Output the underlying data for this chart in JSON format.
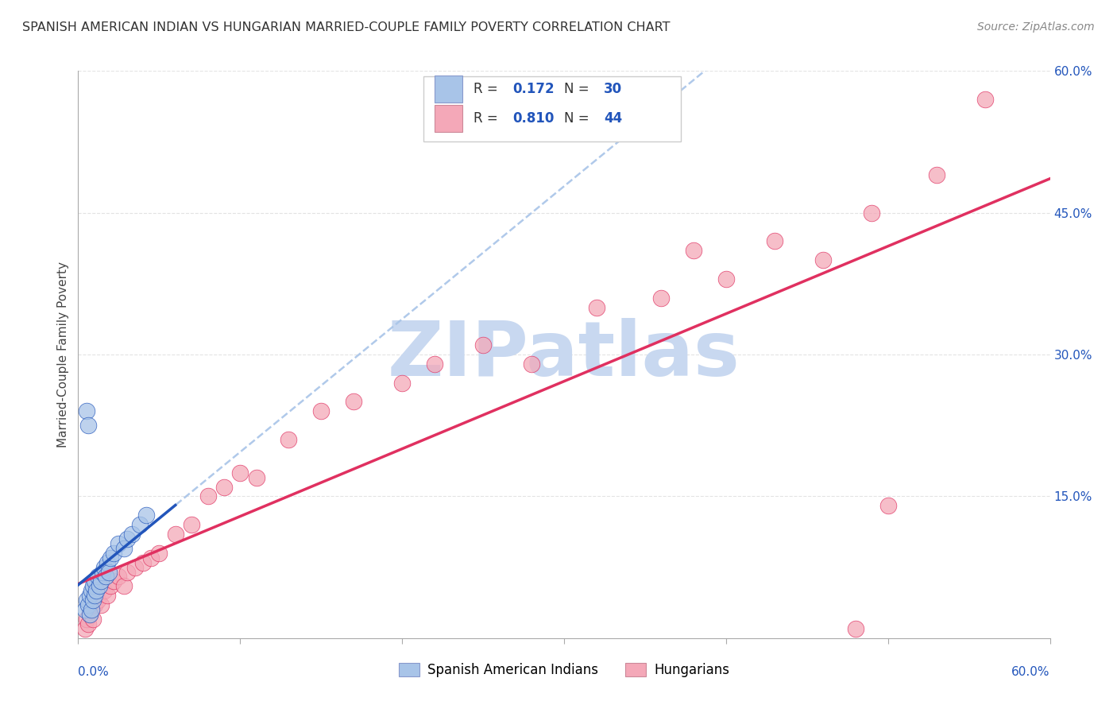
{
  "title": "SPANISH AMERICAN INDIAN VS HUNGARIAN MARRIED-COUPLE FAMILY POVERTY CORRELATION CHART",
  "source": "Source: ZipAtlas.com",
  "ylabel": "Married-Couple Family Poverty",
  "legend_label1": "Spanish American Indians",
  "legend_label2": "Hungarians",
  "r1": "0.172",
  "n1": "30",
  "r2": "0.810",
  "n2": "44",
  "xlim": [
    0.0,
    0.6
  ],
  "ylim": [
    0.0,
    0.6
  ],
  "yticks": [
    0.0,
    0.15,
    0.3,
    0.45,
    0.6
  ],
  "color_blue": "#A8C4E8",
  "color_pink": "#F4A8B8",
  "line_blue": "#2255BB",
  "line_pink": "#E03060",
  "dash_color": "#A8C4E8",
  "background": "#ffffff",
  "watermark": "ZIPatlas",
  "watermark_color": "#C8D8F0",
  "blue_points_x": [
    0.004,
    0.005,
    0.006,
    0.007,
    0.007,
    0.008,
    0.008,
    0.009,
    0.009,
    0.01,
    0.01,
    0.011,
    0.012,
    0.013,
    0.014,
    0.015,
    0.016,
    0.017,
    0.018,
    0.019,
    0.02,
    0.022,
    0.025,
    0.028,
    0.03,
    0.033,
    0.038,
    0.042,
    0.005,
    0.006
  ],
  "blue_points_y": [
    0.03,
    0.04,
    0.035,
    0.025,
    0.045,
    0.05,
    0.03,
    0.04,
    0.055,
    0.045,
    0.06,
    0.05,
    0.065,
    0.055,
    0.06,
    0.07,
    0.075,
    0.065,
    0.08,
    0.07,
    0.085,
    0.09,
    0.1,
    0.095,
    0.105,
    0.11,
    0.12,
    0.13,
    0.24,
    0.225
  ],
  "pink_points_x": [
    0.004,
    0.005,
    0.006,
    0.007,
    0.008,
    0.009,
    0.01,
    0.012,
    0.014,
    0.016,
    0.018,
    0.02,
    0.022,
    0.025,
    0.028,
    0.03,
    0.035,
    0.04,
    0.045,
    0.05,
    0.06,
    0.07,
    0.08,
    0.09,
    0.1,
    0.11,
    0.13,
    0.15,
    0.17,
    0.2,
    0.22,
    0.25,
    0.28,
    0.32,
    0.36,
    0.38,
    0.4,
    0.43,
    0.46,
    0.49,
    0.5,
    0.53,
    0.56,
    0.48
  ],
  "pink_points_y": [
    0.01,
    0.02,
    0.015,
    0.025,
    0.03,
    0.02,
    0.035,
    0.04,
    0.035,
    0.05,
    0.045,
    0.055,
    0.06,
    0.065,
    0.055,
    0.07,
    0.075,
    0.08,
    0.085,
    0.09,
    0.11,
    0.12,
    0.15,
    0.16,
    0.175,
    0.17,
    0.21,
    0.24,
    0.25,
    0.27,
    0.29,
    0.31,
    0.29,
    0.35,
    0.36,
    0.41,
    0.38,
    0.42,
    0.4,
    0.45,
    0.14,
    0.49,
    0.57,
    0.01
  ],
  "grid_color": "#DDDDDD",
  "grid_alpha": 0.8,
  "tick_color": "#AAAAAA"
}
